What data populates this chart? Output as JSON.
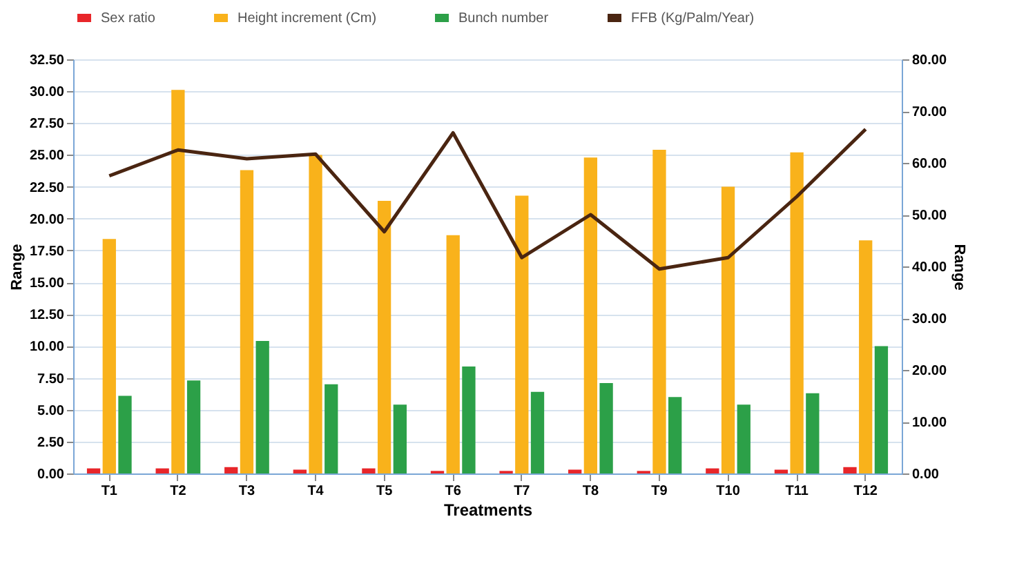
{
  "chart_data": {
    "type": "bar",
    "xlabel": "Treatments",
    "ylabel": "Range",
    "y2label": "Range",
    "categories": [
      "T1",
      "T2",
      "T3",
      "T4",
      "T5",
      "T6",
      "T7",
      "T8",
      "T9",
      "T10",
      "T11",
      "T12"
    ],
    "series": [
      {
        "name": "Sex ratio",
        "color": "#e8262a",
        "values": [
          0.4,
          0.4,
          0.5,
          0.3,
          0.4,
          0.2,
          0.2,
          0.3,
          0.2,
          0.4,
          0.3,
          0.5
        ]
      },
      {
        "name": "Height increment (Cm)",
        "color": "#f9b21b",
        "values": [
          18.4,
          30.1,
          23.8,
          25.0,
          21.4,
          18.7,
          21.8,
          24.8,
          25.4,
          22.5,
          25.2,
          18.3
        ]
      },
      {
        "name": "Bunch number",
        "color": "#2ca048",
        "values": [
          6.1,
          7.3,
          10.4,
          7.0,
          5.4,
          8.4,
          6.4,
          7.1,
          6.0,
          5.4,
          6.3,
          10.0
        ]
      },
      {
        "name": "FFB (Kg/Palm/Year)",
        "color": "#4a2511",
        "type": "line",
        "axis": "y2",
        "values": [
          57.5,
          62.5,
          60.8,
          61.7,
          46.7,
          65.8,
          41.7,
          50.0,
          39.5,
          41.7,
          53.5,
          66.5
        ]
      }
    ],
    "ylim": [
      0,
      32.5
    ],
    "yticks": [
      {
        "value": 0,
        "label": "0.00"
      },
      {
        "value": 2.5,
        "label": "2.50"
      },
      {
        "value": 5,
        "label": "5.00"
      },
      {
        "value": 7.5,
        "label": "7.50"
      },
      {
        "value": 10,
        "label": "10.00"
      },
      {
        "value": 12.5,
        "label": "12.50"
      },
      {
        "value": 15,
        "label": "15.00"
      },
      {
        "value": 17.5,
        "label": "17.50"
      },
      {
        "value": 20,
        "label": "20.00"
      },
      {
        "value": 22.5,
        "label": "22.50"
      },
      {
        "value": 25,
        "label": "25.00"
      },
      {
        "value": 27.5,
        "label": "27.50"
      },
      {
        "value": 30,
        "label": "30.00"
      },
      {
        "value": 32.5,
        "label": "32.50"
      }
    ],
    "y2lim": [
      0,
      80
    ],
    "y2ticks": [
      {
        "value": 0,
        "label": "0.00"
      },
      {
        "value": 10,
        "label": "10.00"
      },
      {
        "value": 20,
        "label": "20.00"
      },
      {
        "value": 30,
        "label": "30.00"
      },
      {
        "value": 40,
        "label": "40.00"
      },
      {
        "value": 50,
        "label": "50.00"
      },
      {
        "value": 60,
        "label": "60.00"
      },
      {
        "value": 70,
        "label": "70.00"
      },
      {
        "value": 80,
        "label": "80.00"
      }
    ],
    "grid": "y",
    "legend": "top",
    "line_style": "solid",
    "marker": "none"
  }
}
